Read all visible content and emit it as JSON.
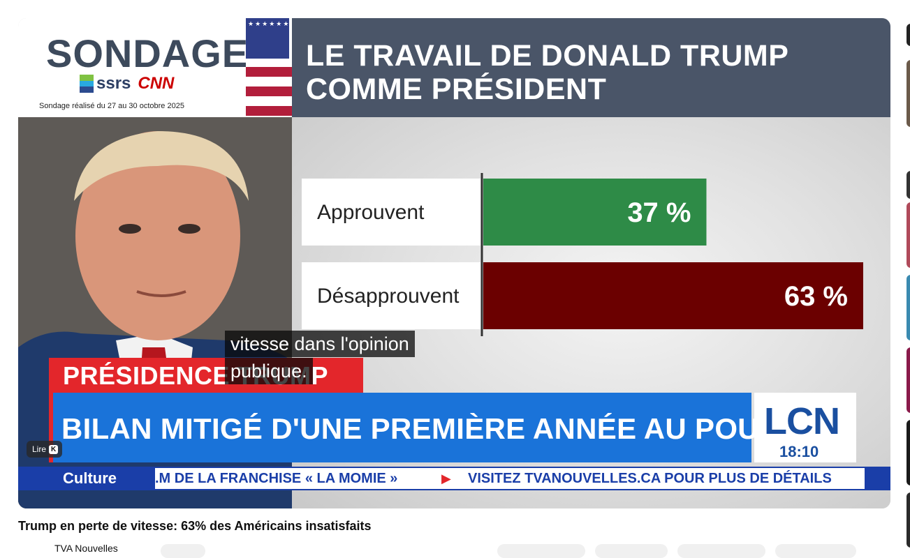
{
  "video": {
    "sondage": "SONDAGE",
    "ssrs": "ssrs",
    "cnn": "CNN",
    "poll_date": "Sondage réalisé du 27 au 30 octobre 2025",
    "flag_stars": "★★★★★★★★★★★★★★★★★★★★★★★★★★★★★★",
    "headline": "LE TRAVAIL DE DONALD TRUMP COMME PRÉSIDENT",
    "section_banner": "PRÉSIDENCE TRUMP",
    "main_banner": "BILAN MITIGÉ D'UNE PREMIÈRE ANNÉE AU POUVOIR",
    "lcn_logo": "LCN",
    "lcn_time": "18:10",
    "ticker_label": "Culture",
    "ticker_text_1": ".M DE LA FRANCHISE « LA MOMIE »",
    "ticker_arrow": "▶",
    "ticker_text_2": "VISITEZ TVANOUVELLES.CA POUR PLUS DE DÉTAILS",
    "caption_line_1": "vitesse dans l'opinion",
    "caption_line_2": "publique.",
    "lire_label": "Lire",
    "lire_key": "K"
  },
  "chart_data": {
    "type": "bar",
    "orientation": "horizontal",
    "categories": [
      "Approuvent",
      "Désapprouvent"
    ],
    "values": [
      37,
      63
    ],
    "value_labels": [
      "37 %",
      "63 %"
    ],
    "colors": [
      "#2e8b47",
      "#6b0000"
    ],
    "xlim": [
      0,
      63
    ]
  },
  "page": {
    "title": "Trump en perte de vitesse: 63% des Américains insatisfaits",
    "channel": "TVA Nouvelles"
  },
  "colors": {
    "accent_red": "#e3262b",
    "banner_blue": "#1a73d9",
    "ticker_blue": "#1a3ea8",
    "headline_gray": "#4a5568"
  }
}
